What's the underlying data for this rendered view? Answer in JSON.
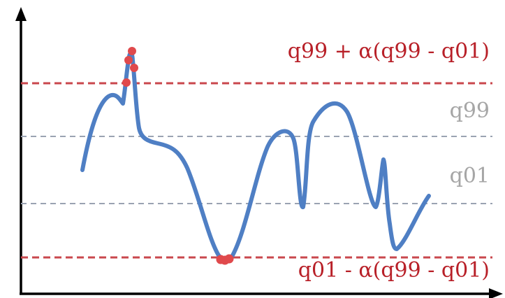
{
  "labels": {
    "upper_threshold": "q99 + α(q99 - q01)",
    "q99": "q99",
    "q01": "q01",
    "lower_threshold": "q01 - α(q99 - q01)"
  },
  "colors": {
    "threshold": "#c9474d",
    "quantile": "#9aa3b2",
    "quantile_text": "#a6a6a6",
    "curve": "#4f7fc4",
    "outlier": "#e0494c",
    "axis": "#000000",
    "threshold_text": "#b82028"
  }
}
